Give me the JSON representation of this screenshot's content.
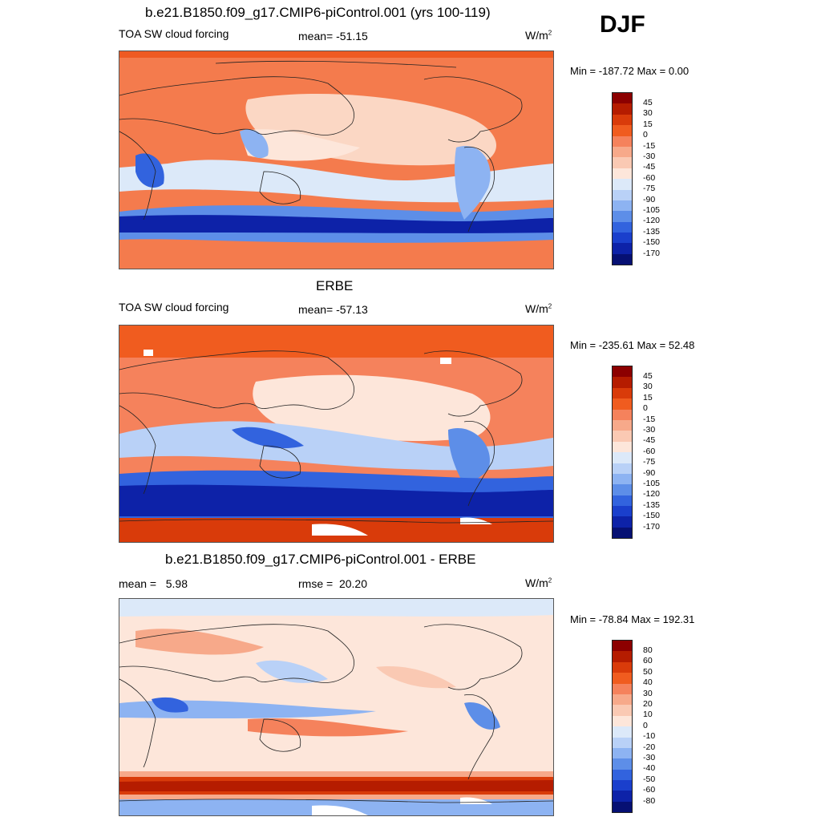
{
  "season": "DJF",
  "units_base": "W/m",
  "units_exp": "2",
  "panels": [
    {
      "title": "b.e21.B1850.f09_g17.CMIP6-piControl.001 (yrs 100-119)",
      "left_label": "TOA SW cloud forcing",
      "center_label": "mean= -51.15",
      "minmax": "Min = -187.72 Max =   0.00",
      "colorbar": {
        "labels": [
          "45",
          "30",
          "15",
          "0",
          "-15",
          "-30",
          "-45",
          "-60",
          "-75",
          "-90",
          "-105",
          "-120",
          "-135",
          "-150",
          "-170"
        ],
        "colors": [
          "#8c0000",
          "#b51c00",
          "#d93b0a",
          "#f05c1f",
          "#f5825c",
          "#f7a98a",
          "#fac9b3",
          "#fde6da",
          "#dce9f9",
          "#b9d1f7",
          "#8db3f2",
          "#5d8ee8",
          "#3263de",
          "#1a3fcc",
          "#0d22a8",
          "#061073"
        ]
      }
    },
    {
      "title": "ERBE",
      "left_label": "TOA SW cloud forcing",
      "center_label": "mean= -57.13",
      "minmax": "Min = -235.61 Max =  52.48",
      "colorbar": {
        "labels": [
          "45",
          "30",
          "15",
          "0",
          "-15",
          "-30",
          "-45",
          "-60",
          "-75",
          "-90",
          "-105",
          "-120",
          "-135",
          "-150",
          "-170"
        ],
        "colors": [
          "#8c0000",
          "#b51c00",
          "#d93b0a",
          "#f05c1f",
          "#f5825c",
          "#f7a98a",
          "#fac9b3",
          "#fde6da",
          "#dce9f9",
          "#b9d1f7",
          "#8db3f2",
          "#5d8ee8",
          "#3263de",
          "#1a3fcc",
          "#0d22a8",
          "#061073"
        ]
      }
    },
    {
      "title": "b.e21.B1850.f09_g17.CMIP6-piControl.001 - ERBE",
      "left_label": "mean =   5.98",
      "center_label": "rmse =  20.20",
      "minmax": "Min = -78.84 Max = 192.31",
      "colorbar": {
        "labels": [
          "80",
          "60",
          "50",
          "40",
          "30",
          "20",
          "10",
          "0",
          "-10",
          "-20",
          "-30",
          "-40",
          "-50",
          "-60",
          "-80"
        ],
        "colors": [
          "#8c0000",
          "#b51c00",
          "#d93b0a",
          "#f05c1f",
          "#f5825c",
          "#f7a98a",
          "#fac9b3",
          "#fde6da",
          "#dce9f9",
          "#b9d1f7",
          "#8db3f2",
          "#5d8ee8",
          "#3263de",
          "#1a3fcc",
          "#0d22a8",
          "#061073"
        ]
      }
    }
  ]
}
